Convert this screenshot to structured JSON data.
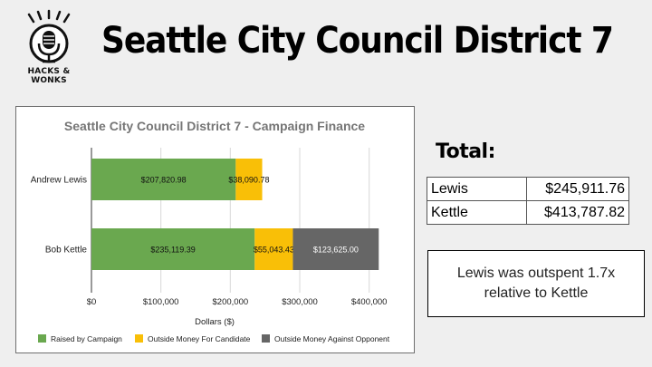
{
  "header": {
    "logo_text": "HACKS & WONKS",
    "title": "Seattle City Council District 7"
  },
  "chart_data": {
    "type": "bar",
    "orientation": "horizontal",
    "stacked": true,
    "title": "Seattle City Council District 7 - Campaign Finance",
    "xlabel": "Dollars ($)",
    "ylabel": "",
    "categories": [
      "Andrew Lewis",
      "Bob Kettle"
    ],
    "series": [
      {
        "name": "Raised by Campaign",
        "color": "#6aa84f",
        "values": [
          207820.98,
          235119.39
        ],
        "labels": [
          "$207,820.98",
          "$235,119.39"
        ]
      },
      {
        "name": "Outside Money For Candidate",
        "color": "#f9bf07",
        "values": [
          38090.78,
          55043.43
        ],
        "labels": [
          "$38,090.78",
          "$55,043.43"
        ]
      },
      {
        "name": "Outside Money Against Opponent",
        "color": "#666666",
        "values": [
          0,
          123625.0
        ],
        "labels": [
          "",
          "$123,625.00"
        ]
      }
    ],
    "xlim": [
      0,
      450000
    ],
    "xticks": [
      0,
      100000,
      200000,
      300000,
      400000
    ],
    "xtick_labels": [
      "$0",
      "$100,000",
      "$200,000",
      "$300,000",
      "$400,000"
    ],
    "grid": true,
    "legend_position": "bottom"
  },
  "totals": {
    "heading": "Total:",
    "rows": [
      {
        "name": "Lewis",
        "amount": "$245,911.76"
      },
      {
        "name": "Kettle",
        "amount": "$413,787.82"
      }
    ]
  },
  "note": "Lewis was outspent 1.7x relative to Kettle"
}
